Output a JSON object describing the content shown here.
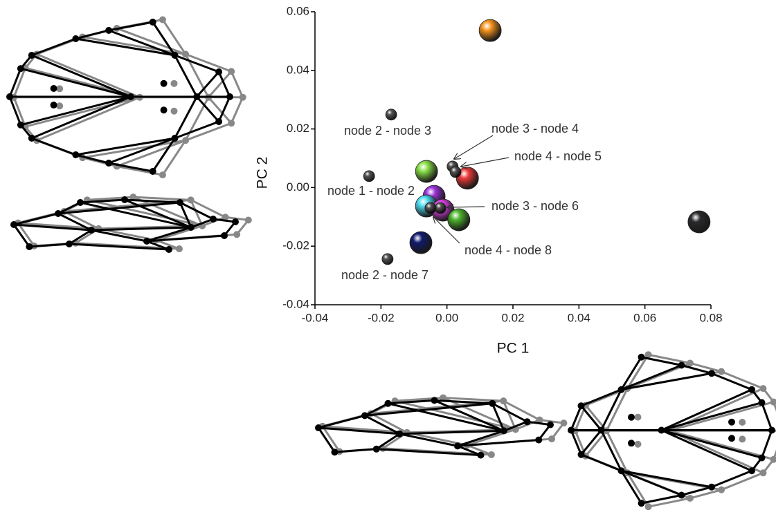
{
  "chart_data": {
    "type": "scatter",
    "x_label": "PC 1",
    "y_label": "PC 2",
    "xlim": [
      -0.04,
      0.08
    ],
    "ylim": [
      -0.04,
      0.06
    ],
    "xticks": [
      -0.04,
      -0.02,
      {
        "value": 0,
        "label": "0.00"
      },
      0.02,
      0.04,
      0.06,
      0.08
    ],
    "yticks": [
      -0.04,
      -0.02,
      {
        "value": 0,
        "label": "0.00"
      },
      0.02,
      0.04,
      0.06
    ],
    "series": [
      {
        "color": "#f7941d",
        "x": [
          0.0131
        ],
        "values": [
          0.0536
        ]
      },
      {
        "color": "#2b2b2e",
        "x": [
          0.0764
        ],
        "values": [
          -0.0117
        ]
      },
      {
        "color": "#8be04a",
        "x": [
          -0.0062
        ],
        "values": [
          0.0055
        ]
      },
      {
        "color": "#ee3a3a",
        "x": [
          0.0062
        ],
        "values": [
          0.0032
        ]
      },
      {
        "color": "#9b30d9",
        "x": [
          -0.0039
        ],
        "values": [
          -0.003
        ]
      },
      {
        "color": "#4fdcf0",
        "x": [
          -0.0062
        ],
        "values": [
          -0.0063
        ]
      },
      {
        "color": "#e040e8",
        "x": [
          -0.0012
        ],
        "values": [
          -0.0077
        ]
      },
      {
        "color": "#4fb52e",
        "x": [
          0.0036
        ],
        "values": [
          -0.011
        ]
      },
      {
        "color": "#101a6e",
        "x": [
          -0.0079
        ],
        "values": [
          -0.0188
        ]
      },
      {
        "color": "#555555",
        "x": [
          -0.0169,
          -0.0236,
          0.0017,
          0.0026,
          -0.002,
          -0.005,
          -0.018
        ],
        "values": [
          0.0249,
          0.0039,
          0.0072,
          0.0053,
          -0.007,
          -0.007,
          -0.0244
        ],
        "labels": [
          "node 2 - node 3",
          "node 1 - node 2",
          "node 3 - node 4",
          "node 4 - node 5",
          "node 3 - node 6",
          "node 4 - node 8",
          "node 2 - node 7"
        ]
      }
    ]
  }
}
